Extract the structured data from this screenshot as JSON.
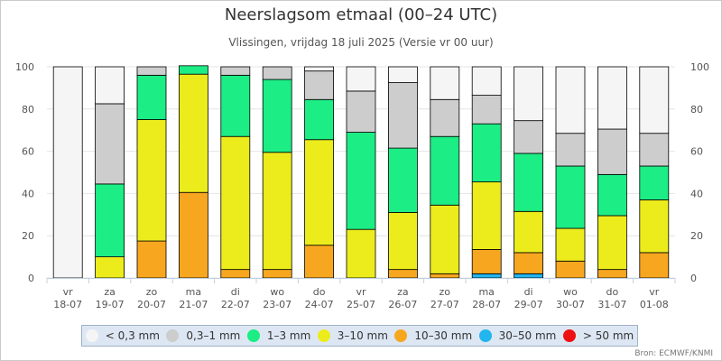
{
  "header": {
    "title": "Neerslagsom etmaal (00–24 UTC)",
    "subtitle": "Vlissingen, vrijdag 18 juli 2025 (Versie vr 00 uur)"
  },
  "source": "Bron: ECMWF/KNMI",
  "chart_data": {
    "type": "bar",
    "stacked": true,
    "ylim": [
      0,
      100
    ],
    "yticks": [
      0,
      20,
      40,
      60,
      80,
      100
    ],
    "grid": true,
    "legend_position": "bottom",
    "categories": [
      {
        "day": "vr",
        "date": "18-07"
      },
      {
        "day": "za",
        "date": "19-07"
      },
      {
        "day": "zo",
        "date": "20-07"
      },
      {
        "day": "ma",
        "date": "21-07"
      },
      {
        "day": "di",
        "date": "22-07"
      },
      {
        "day": "wo",
        "date": "23-07"
      },
      {
        "day": "do",
        "date": "24-07"
      },
      {
        "day": "vr",
        "date": "25-07"
      },
      {
        "day": "za",
        "date": "26-07"
      },
      {
        "day": "zo",
        "date": "27-07"
      },
      {
        "day": "ma",
        "date": "28-07"
      },
      {
        "day": "di",
        "date": "29-07"
      },
      {
        "day": "wo",
        "date": "30-07"
      },
      {
        "day": "do",
        "date": "31-07"
      },
      {
        "day": "vr",
        "date": "01-08"
      }
    ],
    "series": [
      {
        "name": "> 50 mm",
        "color": "#ee1111",
        "values": [
          0,
          0,
          0,
          0,
          0,
          0,
          0,
          0,
          0,
          0,
          0,
          0,
          0,
          0,
          0
        ]
      },
      {
        "name": "30–50 mm",
        "color": "#22b5ee",
        "values": [
          0,
          0,
          0,
          0,
          0,
          0,
          0,
          0,
          0,
          0,
          2,
          2,
          0,
          0,
          0
        ]
      },
      {
        "name": "10–30 mm",
        "color": "#f7a71f",
        "values": [
          0,
          0,
          17.5,
          40.5,
          4,
          4,
          15.5,
          0,
          4,
          2,
          11.5,
          10,
          8,
          4,
          12
        ]
      },
      {
        "name": "3–10 mm",
        "color": "#ecec1c",
        "values": [
          0,
          10,
          57.5,
          56,
          63,
          55.5,
          50,
          23,
          27,
          32.5,
          32,
          19.5,
          15.5,
          25.5,
          25
        ]
      },
      {
        "name": "1–3 mm",
        "color": "#1ced85",
        "values": [
          0,
          34.5,
          21,
          4,
          29,
          34.5,
          19,
          46,
          30.5,
          32.5,
          27.5,
          27.5,
          29.5,
          19.5,
          16
        ]
      },
      {
        "name": "0,3–1 mm",
        "color": "#cdcdcd",
        "values": [
          0,
          38,
          4,
          0,
          4,
          6,
          13.5,
          19.5,
          31,
          17.5,
          13.5,
          15.5,
          15.5,
          21.5,
          15.5
        ]
      },
      {
        "name": "< 0,3 mm",
        "color": "#f5f5f5",
        "values": [
          100,
          17.5,
          0,
          0,
          0,
          0,
          2,
          11.5,
          7.5,
          15.5,
          13.5,
          25.5,
          31.5,
          29.5,
          31.5
        ]
      }
    ]
  },
  "legend": [
    {
      "label": "< 0,3 mm",
      "color": "#f5f5f5"
    },
    {
      "label": "0,3–1 mm",
      "color": "#cdcdcd"
    },
    {
      "label": "1–3 mm",
      "color": "#1ced85"
    },
    {
      "label": "3–10 mm",
      "color": "#ecec1c"
    },
    {
      "label": "10–30 mm",
      "color": "#f7a71f"
    },
    {
      "label": "30–50 mm",
      "color": "#22b5ee"
    },
    {
      "label": "> 50 mm",
      "color": "#ee1111"
    }
  ]
}
